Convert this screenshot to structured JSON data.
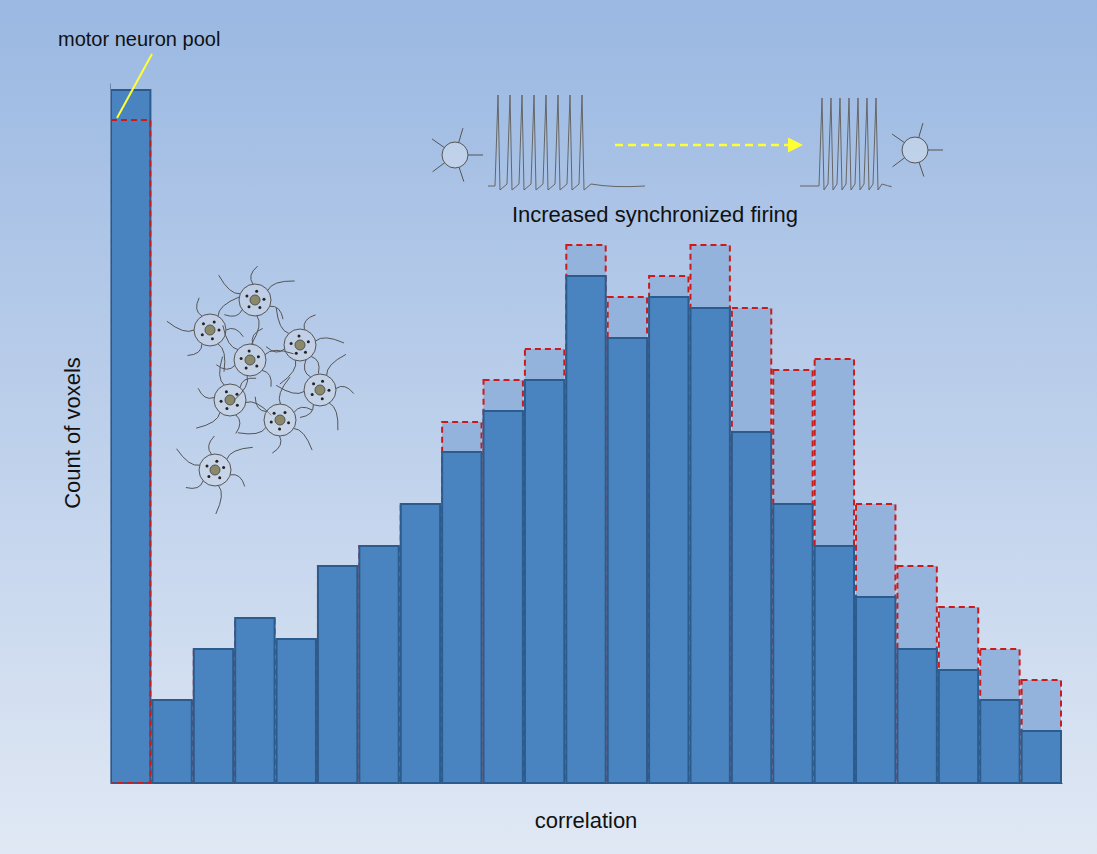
{
  "chart_data": {
    "type": "bar",
    "x_label": "correlation",
    "y_label": "Count of voxels",
    "annotations": [
      "motor neuron pool",
      "Increased synchronized firing"
    ],
    "categories": [
      null,
      null,
      null,
      null,
      null,
      null,
      null,
      null,
      null,
      null,
      null,
      null,
      null,
      null,
      null,
      null,
      null,
      null,
      null,
      null,
      null,
      null,
      null
    ],
    "series": [
      {
        "color": "#4a84c0",
        "values": [
          693,
          83,
          134,
          165,
          144,
          217,
          237,
          279,
          331,
          372,
          403,
          507,
          445,
          486,
          475,
          351,
          279,
          237,
          186,
          134,
          113,
          83,
          52
        ]
      },
      {
        "color": "#93b3dc",
        "line_style": "dashed",
        "values": [
          663,
          83,
          134,
          165,
          144,
          217,
          237,
          279,
          361,
          403,
          434,
          538,
          486,
          507,
          538,
          475,
          413,
          424,
          279,
          217,
          176,
          134,
          103
        ]
      }
    ],
    "ylim": [
      0,
      700
    ],
    "tick_labels": false,
    "grid": false
  }
}
